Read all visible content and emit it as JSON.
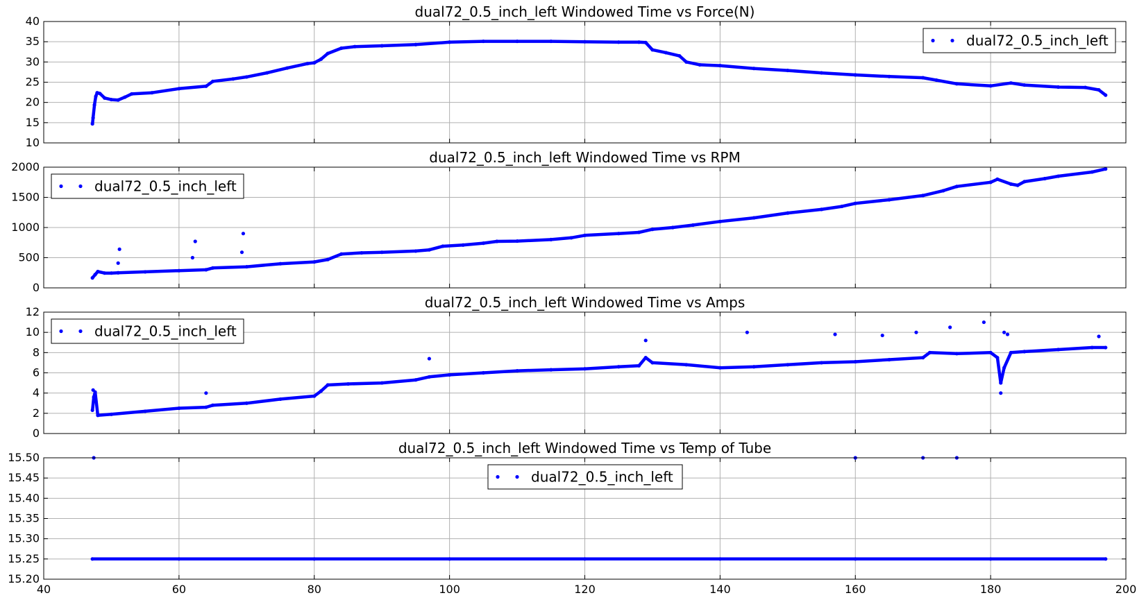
{
  "colors": {
    "series": "#0000ff",
    "grid": "#b0b0b0",
    "axes": "#000000",
    "background": "#ffffff"
  },
  "chart_data": [
    {
      "type": "scatter",
      "title": "dual72_0.5_inch_left Windowed Time vs Force(N)",
      "xlabel": "",
      "ylabel": "",
      "xlim": [
        40,
        200
      ],
      "ylim": [
        10,
        40
      ],
      "xticks": [
        40,
        60,
        80,
        100,
        120,
        140,
        160,
        180,
        200
      ],
      "yticks": [
        10,
        15,
        20,
        25,
        30,
        35,
        40
      ],
      "show_xticklabels": false,
      "grid": true,
      "legend": {
        "placement": "top-right",
        "entries": [
          "dual72_0.5_inch_left"
        ]
      },
      "series": [
        {
          "name": "dual72_0.5_inch_left",
          "marker": "dot",
          "points": [
            [
              47.2,
              14.7
            ],
            [
              47.3,
              16.2
            ],
            [
              47.5,
              19.4
            ],
            [
              47.7,
              21.5
            ],
            [
              47.9,
              22.4
            ],
            [
              48.3,
              22.2
            ],
            [
              49,
              21.1
            ],
            [
              50,
              20.7
            ],
            [
              51,
              20.6
            ],
            [
              52,
              21.3
            ],
            [
              53,
              22.1
            ],
            [
              56,
              22.4
            ],
            [
              60,
              23.4
            ],
            [
              64,
              24.0
            ],
            [
              65,
              25.2
            ],
            [
              68,
              25.8
            ],
            [
              70,
              26.3
            ],
            [
              73,
              27.3
            ],
            [
              76,
              28.5
            ],
            [
              79,
              29.6
            ],
            [
              80,
              29.8
            ],
            [
              81,
              30.7
            ],
            [
              82,
              32.1
            ],
            [
              84,
              33.4
            ],
            [
              86,
              33.8
            ],
            [
              90,
              34.0
            ],
            [
              95,
              34.3
            ],
            [
              100,
              34.9
            ],
            [
              105,
              35.1
            ],
            [
              110,
              35.1
            ],
            [
              115,
              35.1
            ],
            [
              120,
              35.0
            ],
            [
              125,
              34.9
            ],
            [
              128,
              34.9
            ],
            [
              129,
              34.8
            ],
            [
              130,
              33.0
            ],
            [
              132,
              32.3
            ],
            [
              134,
              31.5
            ],
            [
              135,
              30.0
            ],
            [
              137,
              29.3
            ],
            [
              140,
              29.1
            ],
            [
              145,
              28.4
            ],
            [
              150,
              27.9
            ],
            [
              155,
              27.3
            ],
            [
              160,
              26.8
            ],
            [
              165,
              26.4
            ],
            [
              170,
              26.1
            ],
            [
              172,
              25.5
            ],
            [
              175,
              24.6
            ],
            [
              180,
              24.1
            ],
            [
              183,
              24.8
            ],
            [
              185,
              24.3
            ],
            [
              190,
              23.8
            ],
            [
              194,
              23.7
            ],
            [
              196,
              23.1
            ],
            [
              197,
              21.8
            ]
          ]
        }
      ]
    },
    {
      "type": "scatter",
      "title": "dual72_0.5_inch_left Windowed Time vs RPM",
      "xlabel": "",
      "ylabel": "",
      "xlim": [
        40,
        200
      ],
      "ylim": [
        0,
        2000
      ],
      "xticks": [
        40,
        60,
        80,
        100,
        120,
        140,
        160,
        180,
        200
      ],
      "yticks": [
        0,
        500,
        1000,
        1500,
        2000
      ],
      "show_xticklabels": false,
      "grid": true,
      "legend": {
        "placement": "top-left",
        "entries": [
          "dual72_0.5_inch_left"
        ]
      },
      "series": [
        {
          "name": "dual72_0.5_inch_left",
          "marker": "dot",
          "points": [
            [
              47.2,
              165
            ],
            [
              47.6,
              220
            ],
            [
              48,
              270
            ],
            [
              49,
              245
            ],
            [
              50,
              245
            ],
            [
              51,
              250
            ],
            [
              55,
              265
            ],
            [
              60,
              285
            ],
            [
              64,
              300
            ],
            [
              65,
              330
            ],
            [
              70,
              350
            ],
            [
              75,
              400
            ],
            [
              80,
              430
            ],
            [
              82,
              470
            ],
            [
              84,
              560
            ],
            [
              87,
              580
            ],
            [
              90,
              590
            ],
            [
              95,
              610
            ],
            [
              97,
              630
            ],
            [
              99,
              690
            ],
            [
              102,
              710
            ],
            [
              105,
              740
            ],
            [
              107,
              770
            ],
            [
              110,
              775
            ],
            [
              115,
              800
            ],
            [
              118,
              830
            ],
            [
              120,
              870
            ],
            [
              125,
              900
            ],
            [
              128,
              920
            ],
            [
              130,
              970
            ],
            [
              133,
              1000
            ],
            [
              136,
              1040
            ],
            [
              140,
              1100
            ],
            [
              145,
              1160
            ],
            [
              150,
              1240
            ],
            [
              155,
              1300
            ],
            [
              158,
              1350
            ],
            [
              160,
              1400
            ],
            [
              165,
              1460
            ],
            [
              170,
              1530
            ],
            [
              173,
              1610
            ],
            [
              175,
              1680
            ],
            [
              180,
              1750
            ],
            [
              181,
              1800
            ],
            [
              183,
              1720
            ],
            [
              184,
              1700
            ],
            [
              185,
              1760
            ],
            [
              188,
              1810
            ],
            [
              190,
              1850
            ],
            [
              195,
              1920
            ],
            [
              197,
              1970
            ]
          ]
        },
        {
          "name": "",
          "marker": "dot",
          "points": [
            [
              51,
              410
            ],
            [
              51.2,
              640
            ],
            [
              62,
              500
            ],
            [
              62.4,
              770
            ],
            [
              69.3,
              590
            ],
            [
              69.5,
              900
            ]
          ]
        }
      ]
    },
    {
      "type": "scatter",
      "title": "dual72_0.5_inch_left Windowed Time vs Amps",
      "xlabel": "",
      "ylabel": "",
      "xlim": [
        40,
        200
      ],
      "ylim": [
        0,
        12
      ],
      "xticks": [
        40,
        60,
        80,
        100,
        120,
        140,
        160,
        180,
        200
      ],
      "yticks": [
        0,
        2,
        4,
        6,
        8,
        10,
        12
      ],
      "show_xticklabels": false,
      "grid": true,
      "legend": {
        "placement": "top-left",
        "entries": [
          "dual72_0.5_inch_left"
        ]
      },
      "series": [
        {
          "name": "dual72_0.5_inch_left",
          "marker": "dot",
          "points": [
            [
              47.2,
              2.3
            ],
            [
              47.4,
              3.6
            ],
            [
              47.6,
              4.1
            ],
            [
              48,
              1.8
            ],
            [
              50,
              1.9
            ],
            [
              55,
              2.2
            ],
            [
              60,
              2.5
            ],
            [
              64,
              2.6
            ],
            [
              65,
              2.8
            ],
            [
              70,
              3.0
            ],
            [
              75,
              3.4
            ],
            [
              80,
              3.7
            ],
            [
              81,
              4.2
            ],
            [
              82,
              4.8
            ],
            [
              85,
              4.9
            ],
            [
              90,
              5.0
            ],
            [
              95,
              5.3
            ],
            [
              97,
              5.6
            ],
            [
              100,
              5.8
            ],
            [
              105,
              6.0
            ],
            [
              110,
              6.2
            ],
            [
              115,
              6.3
            ],
            [
              120,
              6.4
            ],
            [
              125,
              6.6
            ],
            [
              128,
              6.7
            ],
            [
              129,
              7.5
            ],
            [
              130,
              7.0
            ],
            [
              135,
              6.8
            ],
            [
              140,
              6.5
            ],
            [
              145,
              6.6
            ],
            [
              150,
              6.8
            ],
            [
              155,
              7.0
            ],
            [
              160,
              7.1
            ],
            [
              165,
              7.3
            ],
            [
              170,
              7.5
            ],
            [
              171,
              8.0
            ],
            [
              175,
              7.9
            ],
            [
              180,
              8.0
            ],
            [
              181,
              7.5
            ],
            [
              181.5,
              5.0
            ],
            [
              182,
              6.5
            ],
            [
              183,
              8.0
            ],
            [
              185,
              8.1
            ],
            [
              190,
              8.3
            ],
            [
              195,
              8.5
            ],
            [
              197,
              8.5
            ]
          ]
        },
        {
          "name": "",
          "marker": "dot",
          "points": [
            [
              47.3,
              4.3
            ],
            [
              64,
              4.0
            ],
            [
              97,
              7.4
            ],
            [
              129,
              9.2
            ],
            [
              144,
              10.0
            ],
            [
              157,
              9.8
            ],
            [
              164,
              9.7
            ],
            [
              169,
              10.0
            ],
            [
              174,
              10.5
            ],
            [
              179,
              11.0
            ],
            [
              182,
              10.0
            ],
            [
              182.5,
              9.8
            ],
            [
              196,
              9.6
            ],
            [
              181.5,
              4.0
            ]
          ]
        }
      ]
    },
    {
      "type": "scatter",
      "title": "dual72_0.5_inch_left Windowed Time vs Temp of Tube",
      "xlabel": "",
      "ylabel": "",
      "xlim": [
        40,
        200
      ],
      "ylim": [
        15.2,
        15.5
      ],
      "xticks": [
        40,
        60,
        80,
        100,
        120,
        140,
        160,
        180,
        200
      ],
      "yticks": [
        15.2,
        15.25,
        15.3,
        15.35,
        15.4,
        15.45,
        15.5
      ],
      "xticklabels": [
        "40",
        "60",
        "80",
        "100",
        "120",
        "140",
        "160",
        "180",
        "200"
      ],
      "yticklabels": [
        "15.20",
        "15.25",
        "15.30",
        "15.35",
        "15.40",
        "15.45",
        "15.50"
      ],
      "show_xticklabels": true,
      "grid": true,
      "legend": {
        "placement": "top-center",
        "entries": [
          "dual72_0.5_inch_left"
        ]
      },
      "series": [
        {
          "name": "dual72_0.5_inch_left",
          "marker": "dot",
          "points": [
            [
              47.2,
              15.25
            ],
            [
              60,
              15.25
            ],
            [
              80,
              15.25
            ],
            [
              100,
              15.25
            ],
            [
              120,
              15.25
            ],
            [
              140,
              15.25
            ],
            [
              160,
              15.25
            ],
            [
              180,
              15.25
            ],
            [
              197,
              15.25
            ]
          ]
        },
        {
          "name": "",
          "marker": "dot",
          "points": [
            [
              47.4,
              15.5
            ],
            [
              160,
              15.5
            ],
            [
              170,
              15.5
            ],
            [
              175,
              15.5
            ]
          ]
        }
      ]
    }
  ]
}
